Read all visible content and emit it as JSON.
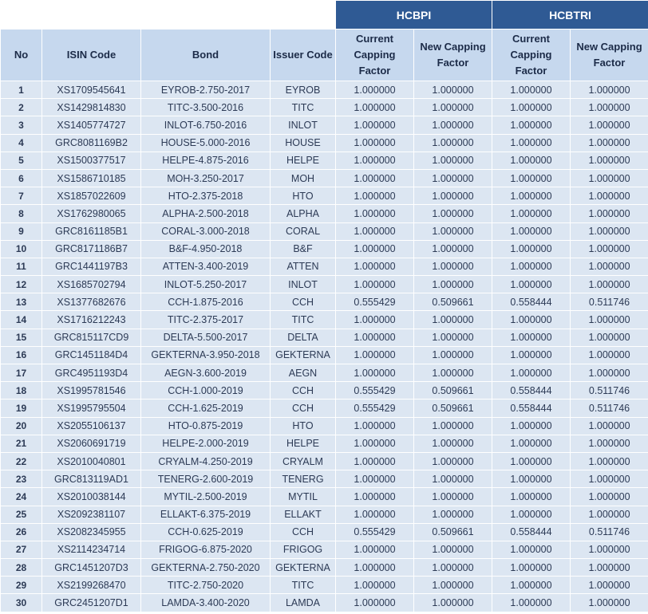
{
  "table": {
    "groups": [
      "HCBPI",
      "HCBTRI"
    ],
    "headers": [
      "No",
      "ISIN Code",
      "Bond",
      "Issuer Code",
      "Current Capping Factor",
      "New Capping Factor",
      "Current Capping Factor",
      "New Capping Factor"
    ],
    "rows": [
      [
        "1",
        "XS1709545641",
        "EYROB-2.750-2017",
        "EYROB",
        "1.000000",
        "1.000000",
        "1.000000",
        "1.000000"
      ],
      [
        "2",
        "XS1429814830",
        "TITC-3.500-2016",
        "TITC",
        "1.000000",
        "1.000000",
        "1.000000",
        "1.000000"
      ],
      [
        "3",
        "XS1405774727",
        "INLOT-6.750-2016",
        "INLOT",
        "1.000000",
        "1.000000",
        "1.000000",
        "1.000000"
      ],
      [
        "4",
        "GRC8081169B2",
        "HOUSE-5.000-2016",
        "HOUSE",
        "1.000000",
        "1.000000",
        "1.000000",
        "1.000000"
      ],
      [
        "5",
        "XS1500377517",
        "HELPE-4.875-2016",
        "HELPE",
        "1.000000",
        "1.000000",
        "1.000000",
        "1.000000"
      ],
      [
        "6",
        "XS1586710185",
        "MOH-3.250-2017",
        "MOH",
        "1.000000",
        "1.000000",
        "1.000000",
        "1.000000"
      ],
      [
        "7",
        "XS1857022609",
        "HTO-2.375-2018",
        "HTO",
        "1.000000",
        "1.000000",
        "1.000000",
        "1.000000"
      ],
      [
        "8",
        "XS1762980065",
        "ALPHA-2.500-2018",
        "ALPHA",
        "1.000000",
        "1.000000",
        "1.000000",
        "1.000000"
      ],
      [
        "9",
        "GRC8161185B1",
        "CORAL-3.000-2018",
        "CORAL",
        "1.000000",
        "1.000000",
        "1.000000",
        "1.000000"
      ],
      [
        "10",
        "GRC8171186B7",
        "B&F-4.950-2018",
        "B&F",
        "1.000000",
        "1.000000",
        "1.000000",
        "1.000000"
      ],
      [
        "11",
        "GRC1441197B3",
        "ATTEN-3.400-2019",
        "ATTEN",
        "1.000000",
        "1.000000",
        "1.000000",
        "1.000000"
      ],
      [
        "12",
        "XS1685702794",
        "INLOT-5.250-2017",
        "INLOT",
        "1.000000",
        "1.000000",
        "1.000000",
        "1.000000"
      ],
      [
        "13",
        "XS1377682676",
        "CCH-1.875-2016",
        "CCH",
        "0.555429",
        "0.509661",
        "0.558444",
        "0.511746"
      ],
      [
        "14",
        "XS1716212243",
        "TITC-2.375-2017",
        "TITC",
        "1.000000",
        "1.000000",
        "1.000000",
        "1.000000"
      ],
      [
        "15",
        "GRC815117CD9",
        "DELTA-5.500-2017",
        "DELTA",
        "1.000000",
        "1.000000",
        "1.000000",
        "1.000000"
      ],
      [
        "16",
        "GRC1451184D4",
        "GEKTERNA-3.950-2018",
        "GEKTERNA",
        "1.000000",
        "1.000000",
        "1.000000",
        "1.000000"
      ],
      [
        "17",
        "GRC4951193D4",
        "AEGN-3.600-2019",
        "AEGN",
        "1.000000",
        "1.000000",
        "1.000000",
        "1.000000"
      ],
      [
        "18",
        "XS1995781546",
        "CCH-1.000-2019",
        "CCH",
        "0.555429",
        "0.509661",
        "0.558444",
        "0.511746"
      ],
      [
        "19",
        "XS1995795504",
        "CCH-1.625-2019",
        "CCH",
        "0.555429",
        "0.509661",
        "0.558444",
        "0.511746"
      ],
      [
        "20",
        "XS2055106137",
        "HTO-0.875-2019",
        "HTO",
        "1.000000",
        "1.000000",
        "1.000000",
        "1.000000"
      ],
      [
        "21",
        "XS2060691719",
        "HELPE-2.000-2019",
        "HELPE",
        "1.000000",
        "1.000000",
        "1.000000",
        "1.000000"
      ],
      [
        "22",
        "XS2010040801",
        "CRYALM-4.250-2019",
        "CRYALM",
        "1.000000",
        "1.000000",
        "1.000000",
        "1.000000"
      ],
      [
        "23",
        "GRC813119AD1",
        "TENERG-2.600-2019",
        "TENERG",
        "1.000000",
        "1.000000",
        "1.000000",
        "1.000000"
      ],
      [
        "24",
        "XS2010038144",
        "MYTIL-2.500-2019",
        "MYTIL",
        "1.000000",
        "1.000000",
        "1.000000",
        "1.000000"
      ],
      [
        "25",
        "XS2092381107",
        "ELLAKT-6.375-2019",
        "ELLAKT",
        "1.000000",
        "1.000000",
        "1.000000",
        "1.000000"
      ],
      [
        "26",
        "XS2082345955",
        "CCH-0.625-2019",
        "CCH",
        "0.555429",
        "0.509661",
        "0.558444",
        "0.511746"
      ],
      [
        "27",
        "XS2114234714",
        "FRIGOG-6.875-2020",
        "FRIGOG",
        "1.000000",
        "1.000000",
        "1.000000",
        "1.000000"
      ],
      [
        "28",
        "GRC1451207D3",
        "GEKTERNA-2.750-2020",
        "GEKTERNA",
        "1.000000",
        "1.000000",
        "1.000000",
        "1.000000"
      ],
      [
        "29",
        "XS2199268470",
        "TITC-2.750-2020",
        "TITC",
        "1.000000",
        "1.000000",
        "1.000000",
        "1.000000"
      ],
      [
        "30",
        "GRC2451207D1",
        "LAMDA-3.400-2020",
        "LAMDA",
        "1.000000",
        "1.000000",
        "1.000000",
        "1.000000"
      ]
    ]
  }
}
